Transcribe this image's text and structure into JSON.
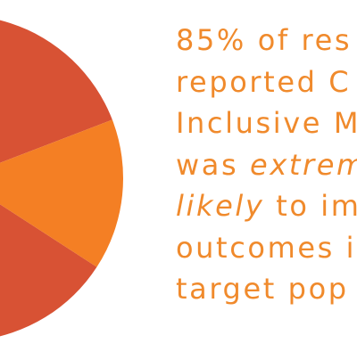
{
  "chart_data": {
    "type": "pie",
    "title": "",
    "slices": [
      {
        "value": 85,
        "color": "#d85234"
      },
      {
        "value": 15,
        "color": "#f47f24"
      }
    ]
  },
  "caption": {
    "color": "#f08a2c",
    "line1": "85% of res",
    "line2": "reported C",
    "line3": "Inclusive M",
    "line4_a": "was ",
    "line4_b": "extrem",
    "line5_a": "likely",
    "line5_b": " to im",
    "line6": "outcomes i",
    "line7": "target pop"
  }
}
